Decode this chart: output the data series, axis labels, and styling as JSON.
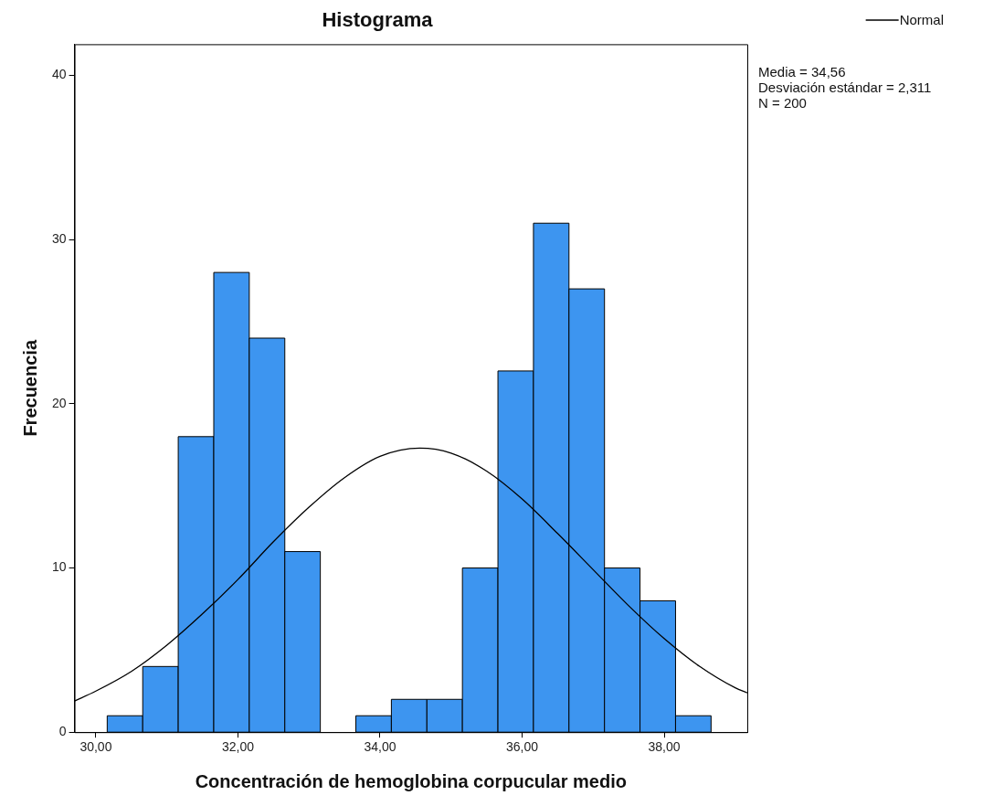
{
  "chart_data": {
    "type": "histogram",
    "title": "Histograma",
    "xlabel": "Concentración de hemoglobina corpucular medio",
    "ylabel": "Frecuencia",
    "bins": [
      30.16,
      30.66,
      31.16,
      31.66,
      32.16,
      32.66,
      33.16,
      33.66,
      34.16,
      34.66,
      35.16,
      35.66,
      36.16,
      36.66,
      37.16,
      37.66,
      38.16,
      38.66
    ],
    "values": [
      1,
      4,
      18,
      28,
      24,
      11,
      0,
      1,
      2,
      2,
      10,
      22,
      31,
      27,
      10,
      8,
      1
    ],
    "color": "#3d95f0",
    "series": [
      {
        "name": "Normal",
        "type": "line",
        "color": "#000000",
        "x": [
          29.7,
          30,
          30.5,
          31,
          31.5,
          32,
          32.5,
          33,
          33.5,
          34,
          34.56,
          35,
          35.5,
          36,
          36.5,
          37,
          37.5,
          38,
          38.5,
          39,
          39.17
        ],
        "values": [
          1.9,
          2.5,
          3.7,
          5.3,
          7.2,
          9.3,
          11.6,
          13.7,
          15.5,
          16.8,
          17.3,
          17,
          15.9,
          14.2,
          12.1,
          9.9,
          7.7,
          5.7,
          4,
          2.7,
          2.4
        ]
      }
    ],
    "xlim": [
      29.7,
      39.17
    ],
    "ylim": [
      0,
      41.9
    ],
    "xticks": [
      {
        "value": 30,
        "label": "30,00"
      },
      {
        "value": 32,
        "label": "32,00"
      },
      {
        "value": 34,
        "label": "34,00"
      },
      {
        "value": 36,
        "label": "36,00"
      },
      {
        "value": 38,
        "label": "38,00"
      }
    ],
    "yticks": [
      0,
      10,
      20,
      30,
      40
    ],
    "grid": false,
    "legend": "top right",
    "marker": "none",
    "line_style": "solid",
    "annotations": [
      "Media = 34,56",
      "Desviación estándar = 2,311",
      "N = 200"
    ]
  }
}
